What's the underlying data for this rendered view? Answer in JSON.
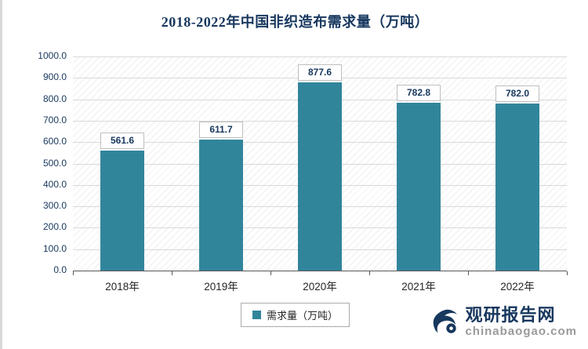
{
  "chart_data": {
    "type": "bar",
    "title": "2018-2022年中国非织造布需求量（万吨）",
    "categories": [
      "2018年",
      "2019年",
      "2020年",
      "2021年",
      "2022年"
    ],
    "values": [
      561.6,
      611.7,
      877.6,
      782.8,
      782.0
    ],
    "value_labels": [
      "561.6",
      "611.7",
      "877.6",
      "782.8",
      "782.0"
    ],
    "xlabel": "",
    "ylabel": "",
    "ylim": [
      0,
      1000
    ],
    "ytick_labels": [
      "0.0",
      "100.0",
      "200.0",
      "300.0",
      "400.0",
      "500.0",
      "600.0",
      "700.0",
      "800.0",
      "900.0",
      "1000.0"
    ],
    "grid": true,
    "legend_position": "bottom",
    "legend_label": "需求量（万吨）",
    "bar_color": "#31859b"
  },
  "watermark": {
    "brand": "观研报告网",
    "domain": "chinabaogao.com"
  }
}
